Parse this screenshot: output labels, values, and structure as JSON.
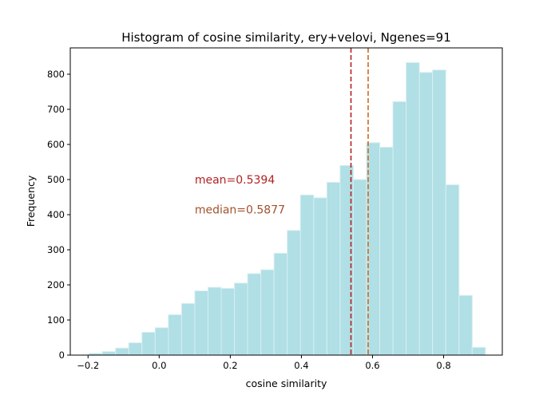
{
  "chart_data": {
    "type": "bar",
    "title": "Histogram of cosine similarity, ery+velovi, Ngenes=91",
    "xlabel": "cosine similarity",
    "ylabel": "Frequency",
    "xlim": [
      -0.25,
      0.965
    ],
    "ylim": [
      0,
      875
    ],
    "xticks": [
      -0.2,
      0.0,
      0.2,
      0.4,
      0.6,
      0.8
    ],
    "xtick_labels": [
      "−0.2",
      "0.0",
      "0.2",
      "0.4",
      "0.6",
      "0.8"
    ],
    "yticks": [
      0,
      100,
      200,
      300,
      400,
      500,
      600,
      700,
      800
    ],
    "yticks_labels": [
      "0",
      "100",
      "200",
      "300",
      "400",
      "500",
      "600",
      "700",
      "800"
    ],
    "bin_start": -0.197,
    "bin_width": 0.03715,
    "counts": [
      5,
      10,
      20,
      35,
      65,
      78,
      115,
      147,
      183,
      193,
      190,
      205,
      232,
      243,
      290,
      355,
      456,
      448,
      492,
      540,
      500,
      605,
      592,
      722,
      833,
      805,
      812,
      485,
      170,
      22
    ],
    "bar_color": "#b0dfe5",
    "bar_edge_color": "#d8eef1",
    "mean": {
      "value": 0.5394,
      "label": "mean=0.5394",
      "color": "#b22222"
    },
    "median": {
      "value": 0.5877,
      "label": "median=0.5877",
      "color": "#d2691e",
      "text_color": "#a0522d"
    },
    "annotation_positions": {
      "mean_text_x": 0.1,
      "mean_text_y": 500,
      "median_text_x": 0.1,
      "median_text_y": 415
    }
  }
}
